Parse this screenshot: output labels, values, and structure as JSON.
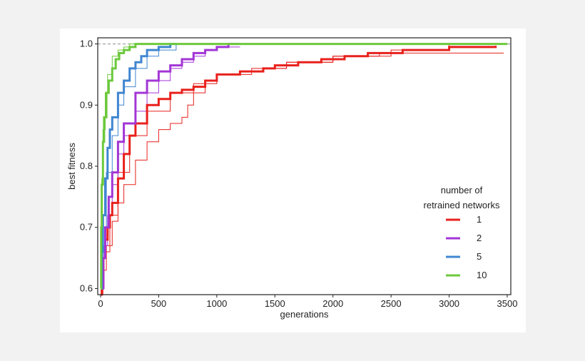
{
  "chart_data": {
    "type": "line",
    "title": "",
    "xlabel": "generations",
    "ylabel": "best fitness",
    "xlim": [
      0,
      3500
    ],
    "ylim": [
      0.59,
      1.01
    ],
    "xticks": [
      0,
      500,
      1000,
      1500,
      2000,
      2500,
      3000,
      3500
    ],
    "yticks": [
      0.6,
      0.7,
      0.8,
      0.9,
      1.0
    ],
    "xtick_labels": [
      "0",
      "500",
      "1000",
      "1500",
      "2000",
      "2500",
      "3000",
      "3500"
    ],
    "ytick_labels": [
      "0.6",
      "0.7",
      "0.8",
      "0.9",
      "1.0"
    ],
    "reference_line": {
      "y": 1.0,
      "style": "dashed",
      "color": "#999999"
    },
    "grid": false,
    "legend": {
      "title_line1": "number of",
      "title_line2": "retrained networks",
      "placement": "right",
      "entries": [
        {
          "label": "1",
          "color": "#e8201c"
        },
        {
          "label": "2",
          "color": "#a236d6"
        },
        {
          "label": "5",
          "color": "#3f86d1"
        },
        {
          "label": "10",
          "color": "#6cc93c"
        }
      ]
    },
    "series": [
      {
        "name": "1",
        "color": "#e8201c",
        "width": 3,
        "x": [
          0,
          10,
          20,
          40,
          60,
          80,
          100,
          150,
          200,
          250,
          300,
          400,
          500,
          600,
          700,
          800,
          900,
          1000,
          1200,
          1400,
          1500,
          1700,
          1900,
          2100,
          2300,
          2600,
          2800,
          3000,
          3200,
          3400
        ],
        "y": [
          0.59,
          0.62,
          0.65,
          0.68,
          0.7,
          0.72,
          0.74,
          0.78,
          0.82,
          0.85,
          0.87,
          0.9,
          0.91,
          0.92,
          0.925,
          0.93,
          0.94,
          0.95,
          0.955,
          0.96,
          0.965,
          0.97,
          0.975,
          0.98,
          0.985,
          0.99,
          0.99,
          0.995,
          0.995,
          0.997
        ]
      },
      {
        "name": "1",
        "color": "#e8201c",
        "width": 1,
        "x": [
          0,
          20,
          50,
          100,
          150,
          200,
          300,
          400,
          500,
          600,
          700,
          750,
          800,
          900,
          1000,
          1200,
          1400,
          1600,
          2000,
          2400,
          3000,
          3470
        ],
        "y": [
          0.59,
          0.63,
          0.67,
          0.71,
          0.74,
          0.77,
          0.81,
          0.84,
          0.86,
          0.87,
          0.88,
          0.9,
          0.92,
          0.94,
          0.95,
          0.955,
          0.96,
          0.97,
          0.98,
          0.985,
          0.985,
          0.985
        ]
      },
      {
        "name": "1",
        "color": "#e8201c",
        "width": 1,
        "x": [
          0,
          30,
          80,
          150,
          250,
          400,
          600,
          800,
          1000,
          1300,
          1600,
          2000,
          2500,
          3000,
          3470
        ],
        "y": [
          0.6,
          0.66,
          0.72,
          0.79,
          0.85,
          0.89,
          0.92,
          0.935,
          0.95,
          0.96,
          0.97,
          0.98,
          0.99,
          1.0,
          1.0
        ]
      },
      {
        "name": "2",
        "color": "#a236d6",
        "width": 3,
        "x": [
          0,
          20,
          40,
          70,
          100,
          150,
          200,
          300,
          400,
          500,
          600,
          700,
          800,
          900,
          1000,
          1100,
          1200
        ],
        "y": [
          0.6,
          0.65,
          0.7,
          0.75,
          0.79,
          0.84,
          0.87,
          0.92,
          0.94,
          0.955,
          0.965,
          0.975,
          0.985,
          0.99,
          0.995,
          1.0,
          1.0
        ]
      },
      {
        "name": "2",
        "color": "#a236d6",
        "width": 1,
        "x": [
          0,
          30,
          60,
          100,
          150,
          200,
          300,
          400,
          500,
          600,
          700,
          800,
          900,
          1000,
          1200
        ],
        "y": [
          0.6,
          0.67,
          0.72,
          0.77,
          0.82,
          0.85,
          0.89,
          0.92,
          0.94,
          0.96,
          0.97,
          0.98,
          0.99,
          0.995,
          0.995
        ]
      },
      {
        "name": "5",
        "color": "#3f86d1",
        "width": 3,
        "x": [
          0,
          10,
          20,
          40,
          60,
          80,
          100,
          150,
          200,
          250,
          300,
          350,
          400,
          500,
          600,
          650
        ],
        "y": [
          0.6,
          0.66,
          0.72,
          0.78,
          0.83,
          0.86,
          0.88,
          0.92,
          0.94,
          0.96,
          0.97,
          0.98,
          0.99,
          0.995,
          1.0,
          1.0
        ]
      },
      {
        "name": "5",
        "color": "#3f86d1",
        "width": 1,
        "x": [
          0,
          20,
          50,
          100,
          150,
          200,
          300,
          400,
          500,
          650
        ],
        "y": [
          0.6,
          0.7,
          0.79,
          0.85,
          0.9,
          0.93,
          0.96,
          0.98,
          0.99,
          1.0
        ]
      },
      {
        "name": "10",
        "color": "#6cc93c",
        "width": 3,
        "x": [
          0,
          5,
          10,
          20,
          30,
          50,
          70,
          100,
          130,
          160,
          200,
          250,
          300,
          3500
        ],
        "y": [
          0.6,
          0.7,
          0.77,
          0.84,
          0.88,
          0.92,
          0.94,
          0.96,
          0.975,
          0.985,
          0.99,
          0.995,
          1.0,
          1.0
        ]
      },
      {
        "name": "10",
        "color": "#6cc93c",
        "width": 1,
        "x": [
          0,
          10,
          20,
          40,
          60,
          100,
          150,
          200,
          250,
          3500
        ],
        "y": [
          0.6,
          0.78,
          0.86,
          0.92,
          0.95,
          0.98,
          0.99,
          0.995,
          1.0,
          1.0
        ]
      }
    ]
  }
}
